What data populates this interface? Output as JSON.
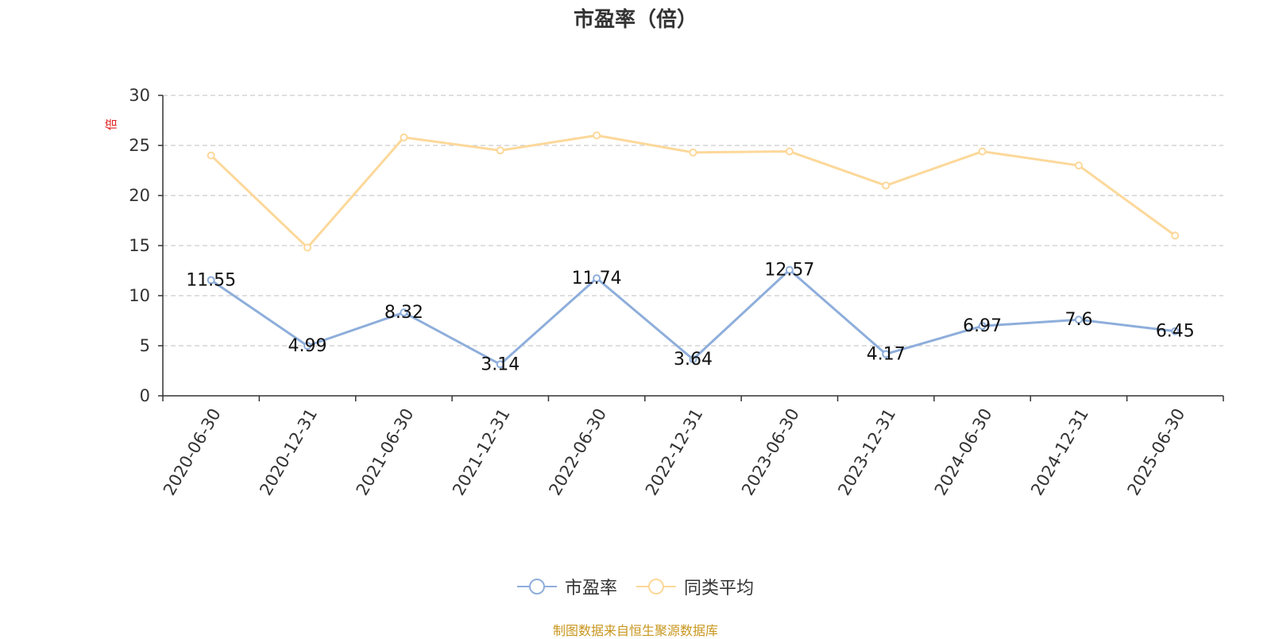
{
  "chart_data": {
    "type": "line",
    "title": "市盈率（倍）",
    "unit_label": "倍",
    "categories": [
      "2020-06-30",
      "2020-12-31",
      "2021-06-30",
      "2021-12-31",
      "2022-06-30",
      "2022-12-31",
      "2023-06-30",
      "2023-12-31",
      "2024-06-30",
      "2024-12-31",
      "2025-06-30"
    ],
    "ylim": [
      0,
      30
    ],
    "yticks": [
      0,
      5,
      10,
      15,
      20,
      25,
      30
    ],
    "grid": true,
    "legend_position": "bottom-center",
    "series": [
      {
        "name": "市盈率",
        "color": "#8eaedb",
        "show_labels": true,
        "values": [
          11.55,
          4.99,
          8.32,
          3.14,
          11.74,
          3.64,
          12.57,
          4.17,
          6.97,
          7.6,
          6.45
        ]
      },
      {
        "name": "同类平均",
        "color": "#fcd89a",
        "show_labels": false,
        "values": [
          24.0,
          14.8,
          25.8,
          24.5,
          26.0,
          24.3,
          24.4,
          21.0,
          24.4,
          23.0,
          16.0
        ]
      }
    ]
  },
  "footer": {
    "source": "制图数据来自恒生聚源数据库"
  }
}
